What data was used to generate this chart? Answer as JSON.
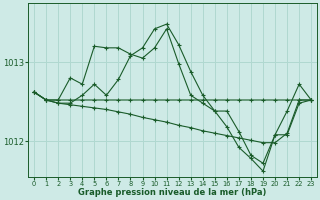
{
  "background_color": "#ceeae6",
  "grid_color": "#b0d8d0",
  "line_color": "#1a5c2a",
  "xlabel": "Graphe pression niveau de la mer (hPa)",
  "xlim": [
    -0.5,
    23.5
  ],
  "ylim": [
    1011.55,
    1013.75
  ],
  "yticks": [
    1012,
    1013
  ],
  "xticks": [
    0,
    1,
    2,
    3,
    4,
    5,
    6,
    7,
    8,
    9,
    10,
    11,
    12,
    13,
    14,
    15,
    16,
    17,
    18,
    19,
    20,
    21,
    22,
    23
  ],
  "series": [
    [
      1012.62,
      1012.52,
      1012.52,
      1012.52,
      1012.52,
      1012.52,
      1012.52,
      1012.52,
      1012.52,
      1012.52,
      1012.52,
      1012.52,
      1012.52,
      1012.52,
      1012.52,
      1012.52,
      1012.52,
      1012.52,
      1012.52,
      1012.52,
      1012.52,
      1012.52,
      1012.52,
      1012.52
    ],
    [
      1012.62,
      1012.52,
      1012.48,
      1012.46,
      1012.44,
      1012.42,
      1012.4,
      1012.37,
      1012.34,
      1012.3,
      1012.27,
      1012.24,
      1012.2,
      1012.17,
      1012.13,
      1012.1,
      1012.07,
      1012.04,
      1012.01,
      1011.98,
      1011.98,
      1012.1,
      1012.52,
      1012.52
    ],
    [
      1012.62,
      1012.52,
      1012.52,
      1012.8,
      1012.72,
      1013.2,
      1013.18,
      1013.18,
      1013.1,
      1013.05,
      1013.18,
      1013.42,
      1012.98,
      1012.58,
      1012.48,
      1012.38,
      1012.38,
      1012.12,
      1011.82,
      1011.72,
      1012.08,
      1012.08,
      1012.48,
      1012.52
    ],
    [
      1012.62,
      1012.52,
      1012.48,
      1012.48,
      1012.58,
      1012.72,
      1012.58,
      1012.78,
      1013.08,
      1013.18,
      1013.42,
      1013.48,
      1013.22,
      1012.88,
      1012.58,
      1012.38,
      1012.18,
      1011.92,
      1011.78,
      1011.62,
      1012.08,
      1012.38,
      1012.72,
      1012.52
    ]
  ]
}
